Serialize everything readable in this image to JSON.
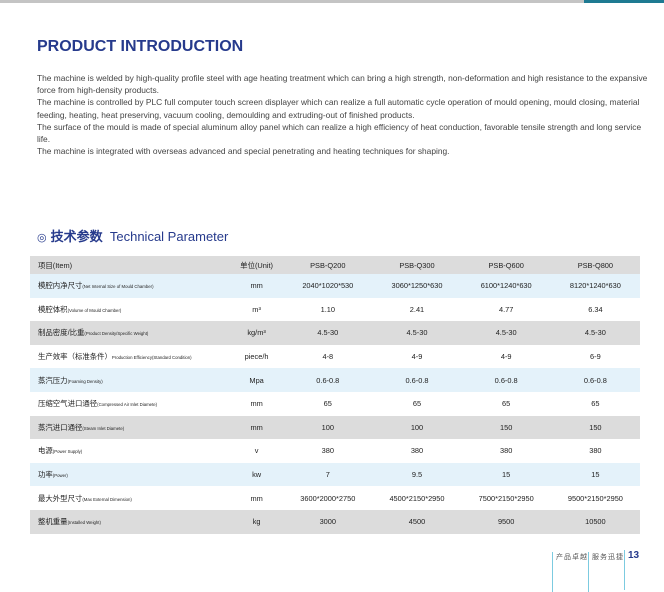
{
  "title": "PRODUCT INTRODUCTION",
  "intro": [
    "The machine is welded by high-quality profile steel with age heating treatment which can bring a high strength, non-deformation and high resistance to the expansive force from high-density products.",
    "The machine is controlled by PLC full computer touch screen displayer which can realize a full automatic cycle operation of mould opening, mould closing, material feeding, heating, heat preserving, vacuum cooling, demoulding and extruding-out of finished products.",
    "The surface of the mould is made of special aluminum alloy panel which can realize a high efficiency of heat conduction, favorable tensile strength and long service life.",
    "The machine is integrated with overseas advanced and special penetrating and heating techniques for shaping."
  ],
  "section": {
    "icon": "◎",
    "cn": "技术参数",
    "en": "Technical Parameter"
  },
  "table": {
    "header": [
      "项目(Item)",
      "单位(Unit)",
      "PSB-Q200",
      "PSB-Q300",
      "PSB-Q600",
      "PSB-Q800"
    ],
    "rows": [
      {
        "cn": "模腔内净尺寸",
        "en": "(Net Internal Size of Mould Chamber)",
        "unit": "mm",
        "v": [
          "2040*1020*530",
          "3060*1250*630",
          "6100*1240*630",
          "8120*1240*630"
        ]
      },
      {
        "cn": "模腔体积",
        "en": "(Volume of Mould Chamber)",
        "unit": "m³",
        "v": [
          "1.10",
          "2.41",
          "4.77",
          "6.34"
        ]
      },
      {
        "cn": "制品密度/比重",
        "en": "(Product Density/Specific Weight)",
        "unit": "kg/m³",
        "v": [
          "4.5-30",
          "4.5-30",
          "4.5-30",
          "4.5-30"
        ]
      },
      {
        "cn": "生产效率（标准条件）",
        "en": "Production Efficiency(Standard Condition)",
        "unit": "piece/h",
        "v": [
          "4-8",
          "4-9",
          "4-9",
          "6-9"
        ]
      },
      {
        "cn": "蒸汽压力",
        "en": "(Foaming Density)",
        "unit": "Mpa",
        "v": [
          "0.6-0.8",
          "0.6-0.8",
          "0.6-0.8",
          "0.6-0.8"
        ]
      },
      {
        "cn": "压缩空气进口通径",
        "en": "(Compressed Air Inlet Diamete)",
        "unit": "mm",
        "v": [
          "65",
          "65",
          "65",
          "65"
        ]
      },
      {
        "cn": "蒸汽进口通径",
        "en": "(Steam Inlet Diamete)",
        "unit": "mm",
        "v": [
          "100",
          "100",
          "150",
          "150"
        ]
      },
      {
        "cn": "电源",
        "en": "(Power Supply)",
        "unit": "v",
        "v": [
          "380",
          "380",
          "380",
          "380"
        ]
      },
      {
        "cn": "功率",
        "en": "(Power)",
        "unit": "kw",
        "v": [
          "7",
          "9.5",
          "15",
          "15"
        ]
      },
      {
        "cn": "最大外型尺寸",
        "en": "(Max External Dimension)",
        "unit": "mm",
        "v": [
          "3600*2000*2750",
          "4500*2150*2950",
          "7500*2150*2950",
          "9500*2150*2950"
        ]
      },
      {
        "cn": "整机重量",
        "en": "(Installed Weight)",
        "unit": "kg",
        "v": [
          "3000",
          "4500",
          "9500",
          "10500"
        ]
      }
    ]
  },
  "footer": {
    "a": "产品卓越",
    "b": "服务迅捷",
    "page": "13"
  }
}
